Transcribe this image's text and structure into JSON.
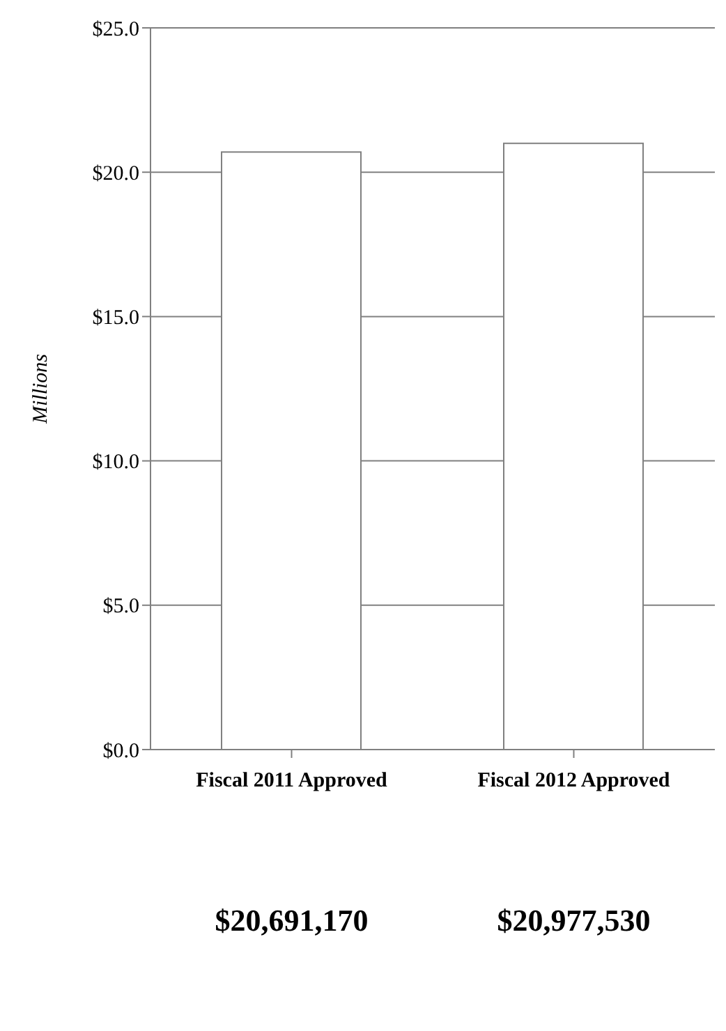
{
  "chart_data": {
    "type": "bar",
    "ylabel": "Millions",
    "categories": [
      "Fiscal 2011 Approved",
      "Fiscal 2012 Approved"
    ],
    "values": [
      20.7,
      21.0
    ],
    "annotations": [
      "$20,691,170",
      "$20,977,530"
    ],
    "color": "#ffffff",
    "ylim": [
      0,
      25
    ],
    "yticks": [
      {
        "value": 0,
        "label": "$0.0"
      },
      {
        "value": 5,
        "label": "$5.0"
      },
      {
        "value": 10,
        "label": "$10.0"
      },
      {
        "value": 15,
        "label": "$15.0"
      },
      {
        "value": 20,
        "label": "$20.0"
      },
      {
        "value": 25,
        "label": "$25.0"
      }
    ],
    "grid": "y"
  }
}
